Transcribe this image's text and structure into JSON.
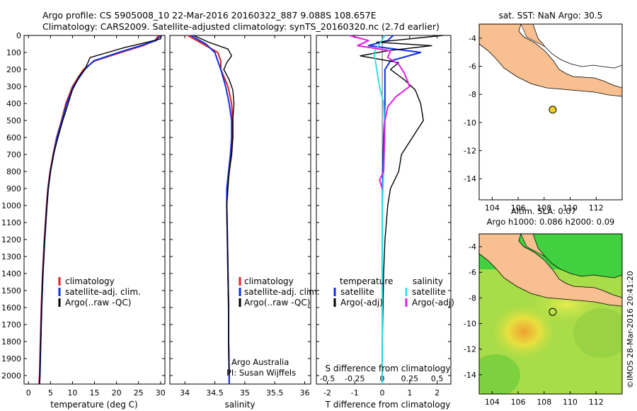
{
  "header": {
    "line1": "Argo profile: CS 5905008_10 22-Mar-2016 20160322_887 9.088S 108.657E",
    "line2": "Climatology: CARS2009. Satellite-adjusted climatology: synTS_20160320.nc (2.7d earlier)"
  },
  "colors": {
    "climatology": "#e02020",
    "satellite": "#1030e0",
    "argo": "#000000",
    "sat_salinity": "#30e0e8",
    "argo_salinity": "#e020e0",
    "land": "#f8c090",
    "float_marker": "#f0d020"
  },
  "chart_data": [
    {
      "type": "line",
      "id": "temperature",
      "xlabel": "temperature (deg C)",
      "xlim": [
        -1,
        31
      ],
      "xticks": [
        "0",
        "5",
        "10",
        "15",
        "20",
        "25",
        "30"
      ],
      "xtick_values": [
        0,
        5,
        10,
        15,
        20,
        25,
        30
      ],
      "ylim": [
        2050,
        0
      ],
      "yticks": [
        "0",
        "100",
        "200",
        "300",
        "400",
        "500",
        "600",
        "700",
        "800",
        "900",
        "1000",
        "1100",
        "1200",
        "1300",
        "1400",
        "1500",
        "1600",
        "1700",
        "1800",
        "1900",
        "2000"
      ],
      "ytick_values": [
        0,
        100,
        200,
        300,
        400,
        500,
        600,
        700,
        800,
        900,
        1000,
        1100,
        1200,
        1300,
        1400,
        1500,
        1600,
        1700,
        1800,
        1900,
        2000
      ],
      "legend": [
        "climatology",
        "satellite-adj. clim.",
        "Argo(..raw -QC)"
      ],
      "series": [
        {
          "name": "climatology",
          "color_key": "climatology",
          "depth": [
            0,
            30,
            60,
            100,
            150,
            200,
            250,
            300,
            400,
            500,
            600,
            700,
            800,
            900,
            1000,
            1200,
            1400,
            1600,
            1800,
            2000,
            2050
          ],
          "values": [
            29.5,
            28.8,
            26,
            21,
            15,
            12.5,
            11.2,
            10,
            8.5,
            7.5,
            6.4,
            5.6,
            4.9,
            4.4,
            4.1,
            3.6,
            3.2,
            2.9,
            2.7,
            2.5,
            2.4
          ]
        },
        {
          "name": "satellite-adj. clim.",
          "color_key": "satellite",
          "depth": [
            0,
            30,
            60,
            100,
            150,
            200,
            250,
            300,
            400,
            500,
            600,
            700,
            800,
            900,
            1000,
            1200,
            1400,
            1600,
            1800,
            2000,
            2050
          ],
          "values": [
            30,
            29,
            25.5,
            20.5,
            14.8,
            12.8,
            11.5,
            10.2,
            8.7,
            7.6,
            6.5,
            5.7,
            5.0,
            4.5,
            4.2,
            3.7,
            3.3,
            3.0,
            2.8,
            2.6,
            2.5
          ]
        },
        {
          "name": "Argo(..raw -QC)",
          "color_key": "argo",
          "depth": [
            0,
            20,
            40,
            70,
            100,
            130,
            160,
            200,
            240,
            280,
            320,
            360,
            420,
            500,
            600,
            700,
            800,
            900,
            1000,
            1200,
            1400,
            1600,
            1800,
            2000,
            2050
          ],
          "values": [
            30.2,
            30,
            27,
            22,
            18,
            14,
            13.5,
            12.8,
            11.5,
            10.8,
            10,
            9.5,
            8.8,
            7.8,
            6.7,
            5.7,
            5.0,
            4.5,
            4.2,
            3.7,
            3.3,
            3.0,
            2.8,
            2.6,
            2.5
          ]
        }
      ]
    },
    {
      "type": "line",
      "id": "salinity",
      "xlabel": "salinity",
      "xlim": [
        33.75,
        36.1
      ],
      "xticks": [
        "34",
        "34.5",
        "35",
        "35.5",
        "36"
      ],
      "xtick_values": [
        34,
        34.5,
        35,
        35.5,
        36
      ],
      "ylim": [
        2050,
        0
      ],
      "legend": [
        "climatology",
        "satellite-adj. clim.",
        "Argo(..raw -QC)"
      ],
      "annotation": [
        "Argo Australia",
        "PI: Susan Wijffels"
      ],
      "series": [
        {
          "name": "climatology",
          "color_key": "climatology",
          "depth": [
            0,
            50,
            100,
            150,
            200,
            300,
            400,
            500,
            600,
            700,
            800,
            900,
            1000,
            1200,
            1400,
            1600,
            1800,
            2000,
            2050
          ],
          "values": [
            34.05,
            34.3,
            34.55,
            34.6,
            34.6,
            34.72,
            34.78,
            34.8,
            34.8,
            34.78,
            34.74,
            34.71,
            34.7,
            34.71,
            34.72,
            34.73,
            34.73,
            34.74,
            34.74
          ]
        },
        {
          "name": "satellite-adj. clim.",
          "color_key": "satellite",
          "depth": [
            0,
            50,
            100,
            150,
            200,
            300,
            400,
            500,
            600,
            700,
            800,
            900,
            1000,
            1200,
            1400,
            1600,
            1800,
            2000,
            2050
          ],
          "values": [
            34.1,
            34.35,
            34.5,
            34.55,
            34.6,
            34.68,
            34.74,
            34.78,
            34.78,
            34.76,
            34.73,
            34.7,
            34.7,
            34.71,
            34.72,
            34.73,
            34.73,
            34.74,
            34.74
          ]
        },
        {
          "name": "Argo(..raw -QC)",
          "color_key": "argo",
          "depth": [
            0,
            40,
            80,
            120,
            160,
            200,
            260,
            320,
            400,
            500,
            600,
            700,
            800,
            900,
            1000,
            1200,
            1400,
            1600,
            1800,
            2000
          ],
          "values": [
            34.15,
            34.4,
            34.72,
            34.78,
            34.7,
            34.65,
            34.74,
            34.8,
            34.82,
            34.8,
            34.8,
            34.78,
            34.74,
            34.72,
            34.7,
            34.71,
            34.72,
            34.73,
            34.73,
            34.74
          ]
        }
      ]
    },
    {
      "type": "line",
      "id": "difference",
      "xlabel": "T difference from climatology",
      "xlabel_top": "S difference from climatology",
      "xlim": [
        -2.4,
        2.5
      ],
      "xticks": [
        "-2",
        "-1",
        "0",
        "1",
        "2"
      ],
      "xtick_values": [
        -2,
        -1,
        0,
        1,
        2
      ],
      "xticks_top": [
        "-0.5",
        "-0.25",
        "0",
        "0.25",
        "0.5"
      ],
      "xticks_top_values": [
        -2,
        -1,
        0,
        1,
        2
      ],
      "ylim": [
        2050,
        0
      ],
      "legend_left_title": "temperature",
      "legend_right_title": "salinity",
      "legend_left": [
        "satellite",
        "Argo(-adj)"
      ],
      "legend_right": [
        "satellite",
        "Argo(-adj)"
      ],
      "series": [
        {
          "name": "T satellite",
          "color_key": "satellite",
          "depth": [
            0,
            30,
            60,
            100,
            150,
            200,
            300,
            400,
            600,
            800,
            1000,
            1400,
            1800,
            2050
          ],
          "values": [
            0.4,
            0.2,
            -0.5,
            1.4,
            0.3,
            0.1,
            0.1,
            0.1,
            0.05,
            0.02,
            0,
            0,
            0,
            0
          ]
        },
        {
          "name": "T Argo(-adj)",
          "color_key": "argo",
          "depth": [
            0,
            20,
            40,
            60,
            90,
            120,
            160,
            200,
            260,
            320,
            400,
            500,
            600,
            700,
            800,
            900,
            1000,
            1100,
            1200,
            1400,
            1600,
            1800,
            2000
          ],
          "values": [
            2.2,
            1.0,
            -0.2,
            1.8,
            0.2,
            -0.8,
            0.6,
            0.3,
            0.8,
            1.2,
            1.4,
            1.5,
            1.1,
            0.7,
            0.6,
            0.3,
            0.2,
            0.15,
            0.1,
            0.05,
            0.03,
            0,
            0
          ]
        },
        {
          "name": "S satellite",
          "color_key": "sat_salinity",
          "depth": [
            0,
            50,
            100,
            200,
            300,
            400,
            600,
            800,
            1000,
            1400,
            1800,
            2050
          ],
          "values": [
            0.1,
            -0.1,
            -0.3,
            -0.2,
            -0.1,
            0.05,
            0.1,
            0.05,
            0,
            0,
            0,
            0
          ]
        },
        {
          "name": "S Argo(-adj)",
          "color_key": "argo_salinity",
          "depth": [
            0,
            30,
            60,
            90,
            130,
            170,
            220,
            260,
            300,
            360,
            420,
            500,
            800,
            850,
            900
          ],
          "values": [
            -1.2,
            -0.5,
            -0.9,
            0.3,
            0.2,
            0.6,
            0.8,
            0.9,
            1.0,
            0.5,
            0.2,
            0.1,
            0.05,
            -0.1,
            0
          ]
        }
      ]
    },
    {
      "type": "map",
      "id": "sst-map",
      "title": "sat. SST: NaN Argo: 30.5",
      "xlim": [
        103,
        114
      ],
      "ylim": [
        -15.5,
        -3
      ],
      "xticks": [
        "104",
        "106",
        "108",
        "110",
        "112"
      ],
      "xtick_values": [
        104,
        106,
        108,
        110,
        112
      ],
      "yticks": [
        "-4",
        "-6",
        "-8",
        "-10",
        "-12",
        "-14"
      ],
      "ytick_values": [
        -4,
        -6,
        -8,
        -10,
        -12,
        -14
      ],
      "float_position": [
        108.657,
        -9.088
      ]
    },
    {
      "type": "map",
      "id": "sla-map",
      "title_line1": "Altim. SLA: 0.07",
      "title_line2": "Argo h1000: 0.086 h2000: 0.09",
      "xlim": [
        103,
        114
      ],
      "ylim": [
        -15.5,
        -3
      ],
      "xticks": [
        "104",
        "106",
        "108",
        "110",
        "112"
      ],
      "xtick_values": [
        104,
        106,
        108,
        110,
        112
      ],
      "yticks": [
        "-4",
        "-6",
        "-8",
        "-10",
        "-12",
        "-14"
      ],
      "ytick_values": [
        -4,
        -6,
        -8,
        -10,
        -12,
        -14
      ],
      "float_position": [
        108.657,
        -9.088
      ]
    }
  ],
  "footer": {
    "credit": "©IMOS 28-Mar-2016 20:41:20"
  }
}
